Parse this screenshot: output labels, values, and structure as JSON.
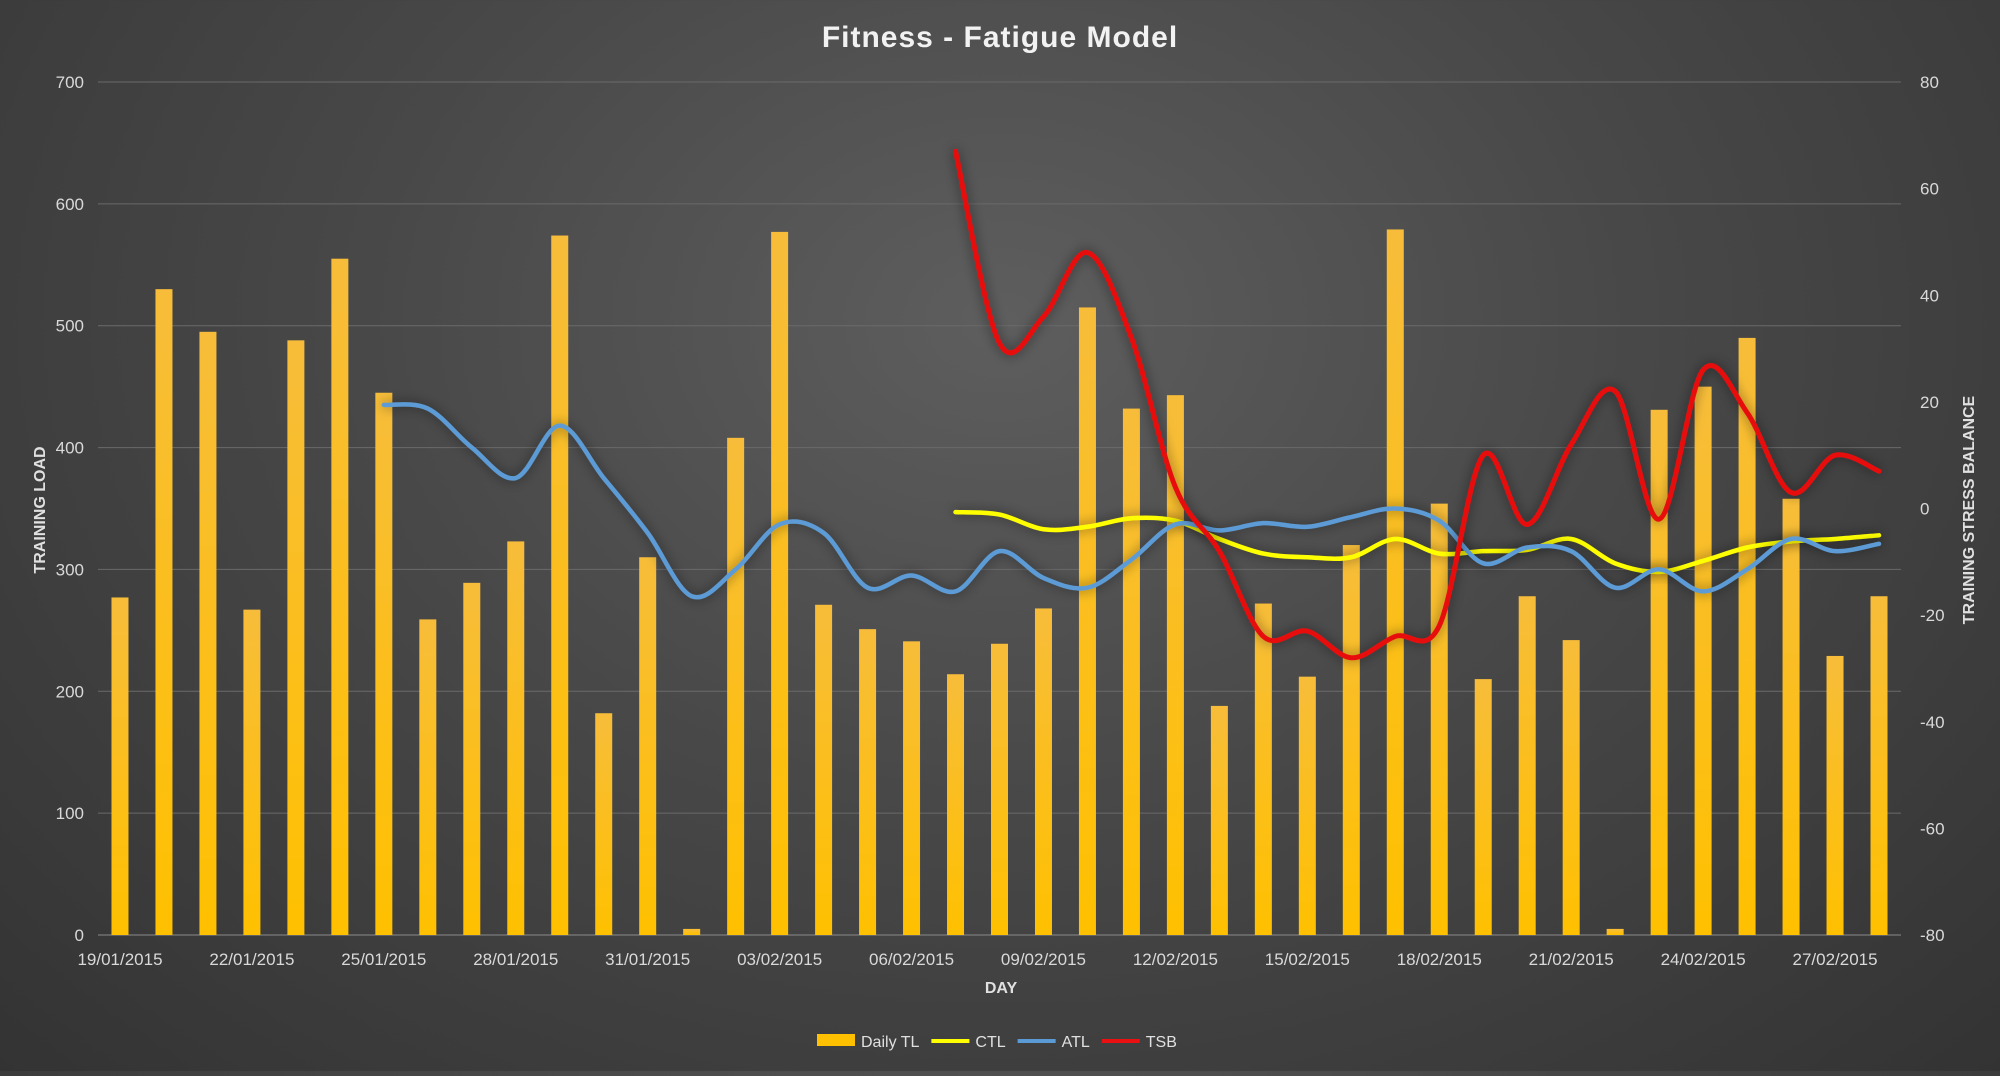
{
  "chart_data": {
    "type": "bar",
    "title": "Fitness - Fatigue Model",
    "xlabel": "DAY",
    "ylabel": "TRAINING LOAD",
    "ylabel_right": "TRAINING STRESS BALANCE",
    "ylim": [
      0,
      700
    ],
    "ylim_right": [
      -80,
      80
    ],
    "yticks": [
      0,
      100,
      200,
      300,
      400,
      500,
      600,
      700
    ],
    "yticks_right": [
      -80,
      -60,
      -40,
      -20,
      0,
      20,
      40,
      60,
      80
    ],
    "grid": true,
    "legend_position": "bottom",
    "categories": [
      "19/01/2015",
      "20/01/2015",
      "21/01/2015",
      "22/01/2015",
      "23/01/2015",
      "24/01/2015",
      "25/01/2015",
      "26/01/2015",
      "27/01/2015",
      "28/01/2015",
      "29/01/2015",
      "30/01/2015",
      "31/01/2015",
      "01/02/2015",
      "02/02/2015",
      "03/02/2015",
      "04/02/2015",
      "05/02/2015",
      "06/02/2015",
      "07/02/2015",
      "08/02/2015",
      "09/02/2015",
      "10/02/2015",
      "11/02/2015",
      "12/02/2015",
      "13/02/2015",
      "14/02/2015",
      "15/02/2015",
      "16/02/2015",
      "17/02/2015",
      "18/02/2015",
      "19/02/2015",
      "20/02/2015",
      "21/02/2015",
      "22/02/2015",
      "23/02/2015",
      "24/02/2015",
      "25/02/2015",
      "26/02/2015",
      "27/02/2015",
      "28/02/2015"
    ],
    "xtick_labels": [
      "19/01/2015",
      "22/01/2015",
      "25/01/2015",
      "28/01/2015",
      "31/01/2015",
      "03/02/2015",
      "06/02/2015",
      "09/02/2015",
      "12/02/2015",
      "15/02/2015",
      "18/02/2015",
      "21/02/2015",
      "24/02/2015",
      "27/02/2015"
    ],
    "series": [
      {
        "name": "Daily TL",
        "type": "bar",
        "axis": "left",
        "color": "#ffc000",
        "values": [
          277,
          530,
          495,
          267,
          488,
          555,
          445,
          259,
          289,
          323,
          574,
          182,
          310,
          5,
          408,
          577,
          271,
          251,
          241,
          214,
          239,
          268,
          515,
          432,
          443,
          188,
          272,
          212,
          320,
          579,
          354,
          210,
          278,
          242,
          5,
          431,
          450,
          490,
          358,
          229,
          278
        ]
      },
      {
        "name": "CTL",
        "type": "line",
        "axis": "left",
        "color": "#ffff00",
        "values": [
          null,
          null,
          null,
          null,
          null,
          null,
          null,
          null,
          null,
          null,
          null,
          null,
          null,
          null,
          null,
          null,
          null,
          null,
          null,
          347,
          345,
          333,
          335,
          342,
          340,
          325,
          313,
          310,
          310,
          325,
          313,
          315,
          316,
          325,
          305,
          298,
          307,
          318,
          323,
          325,
          328
        ]
      },
      {
        "name": "ATL",
        "type": "line",
        "axis": "left",
        "color": "#5b9bd5",
        "values": [
          null,
          null,
          null,
          null,
          null,
          null,
          435,
          432,
          400,
          375,
          418,
          375,
          330,
          278,
          300,
          337,
          330,
          285,
          295,
          282,
          315,
          293,
          285,
          308,
          337,
          332,
          338,
          335,
          343,
          350,
          340,
          305,
          318,
          315,
          285,
          300,
          282,
          300,
          325,
          315,
          321
        ]
      },
      {
        "name": "TSB",
        "type": "line",
        "axis": "right",
        "color": "#e81010",
        "values": [
          null,
          null,
          null,
          null,
          null,
          null,
          null,
          null,
          null,
          null,
          null,
          null,
          null,
          null,
          null,
          null,
          null,
          null,
          null,
          67,
          31,
          36,
          48,
          32,
          4,
          -8,
          -24,
          -23,
          -28,
          -24,
          -22,
          10,
          -3,
          12,
          22,
          -2,
          26,
          18,
          3,
          10,
          7
        ]
      }
    ]
  }
}
